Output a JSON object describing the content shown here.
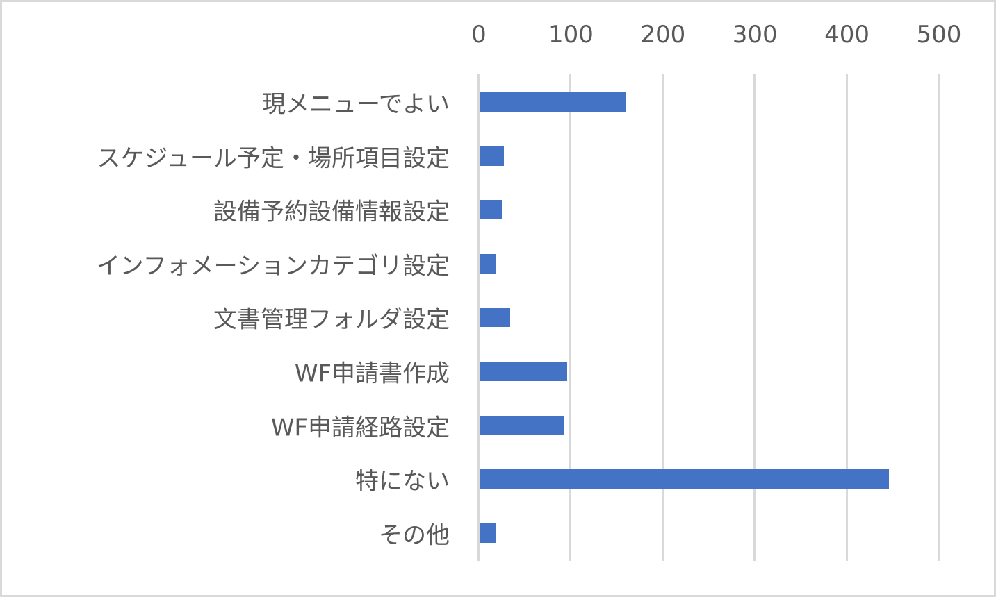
{
  "chart_data": {
    "type": "bar",
    "orientation": "horizontal",
    "title": "",
    "xlabel": "",
    "ylabel": "",
    "xlim": [
      0,
      500
    ],
    "x_ticks": [
      "0",
      "100",
      "200",
      "300",
      "400",
      "500"
    ],
    "x_axis_position": "top",
    "grid": true,
    "legend": null,
    "categories": [
      "現メニューでよい",
      "スケジュール予定・場所項目設定",
      "設備予約設備情報設定",
      "インフォメーションカテゴリ設定",
      "文書管理フォルダ設定",
      "WF申請書作成",
      "WF申請経路設定",
      "特にない",
      "その他"
    ],
    "values": [
      160,
      28,
      26,
      20,
      35,
      97,
      94,
      446,
      20
    ],
    "bar_color": "#4472c4"
  }
}
